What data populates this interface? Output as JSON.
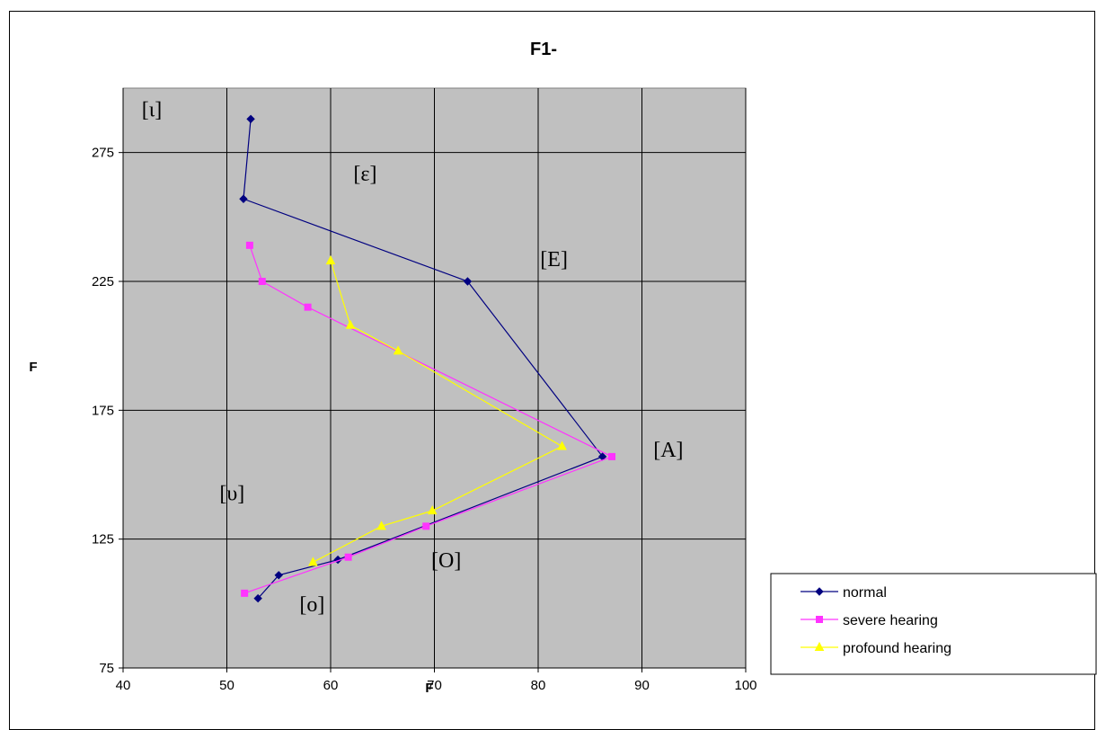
{
  "chart_data": {
    "type": "line",
    "title": "F1-",
    "xlabel": "F",
    "ylabel": "F",
    "xlim": [
      40,
      100
    ],
    "ylim": [
      75,
      300
    ],
    "x_ticks": [
      40,
      50,
      60,
      70,
      80,
      90,
      100
    ],
    "y_ticks": [
      75,
      125,
      175,
      225,
      275
    ],
    "grid": true,
    "legend_position": "bottom-right",
    "series": [
      {
        "name": "normal",
        "color": "#000080",
        "marker": "diamond",
        "points": [
          {
            "x": 52.3,
            "y": 288
          },
          {
            "x": 51.6,
            "y": 257
          },
          {
            "x": 73.2,
            "y": 225
          },
          {
            "x": 86.2,
            "y": 157
          },
          {
            "x": 60.7,
            "y": 117
          },
          {
            "x": 55.0,
            "y": 111
          },
          {
            "x": 53.0,
            "y": 102
          }
        ]
      },
      {
        "name": "severe hearing",
        "color": "#ff33ff",
        "marker": "square",
        "points": [
          {
            "x": 52.2,
            "y": 239
          },
          {
            "x": 53.4,
            "y": 225
          },
          {
            "x": 57.8,
            "y": 215
          },
          {
            "x": 87.1,
            "y": 157
          },
          {
            "x": 69.2,
            "y": 130
          },
          {
            "x": 61.7,
            "y": 118
          },
          {
            "x": 51.7,
            "y": 104
          }
        ]
      },
      {
        "name": "profound hearing",
        "color": "#ffff00",
        "marker": "triangle",
        "points": [
          {
            "x": 60.0,
            "y": 233
          },
          {
            "x": 61.9,
            "y": 208
          },
          {
            "x": 66.5,
            "y": 198
          },
          {
            "x": 82.3,
            "y": 161
          },
          {
            "x": 69.8,
            "y": 136
          },
          {
            "x": 64.9,
            "y": 130
          },
          {
            "x": 58.3,
            "y": 116
          }
        ]
      }
    ],
    "annotations": [
      {
        "text": "[ι]",
        "x": 41.8,
        "y": 289
      },
      {
        "text": "[ε]",
        "x": 62.2,
        "y": 264
      },
      {
        "text": "[E]",
        "x": 80.2,
        "y": 231
      },
      {
        "text": "[A]",
        "x": 91.1,
        "y": 157
      },
      {
        "text": "[υ]",
        "x": 49.3,
        "y": 140
      },
      {
        "text": "[O]",
        "x": 69.7,
        "y": 114
      },
      {
        "text": "[o]",
        "x": 57.0,
        "y": 97
      }
    ]
  }
}
